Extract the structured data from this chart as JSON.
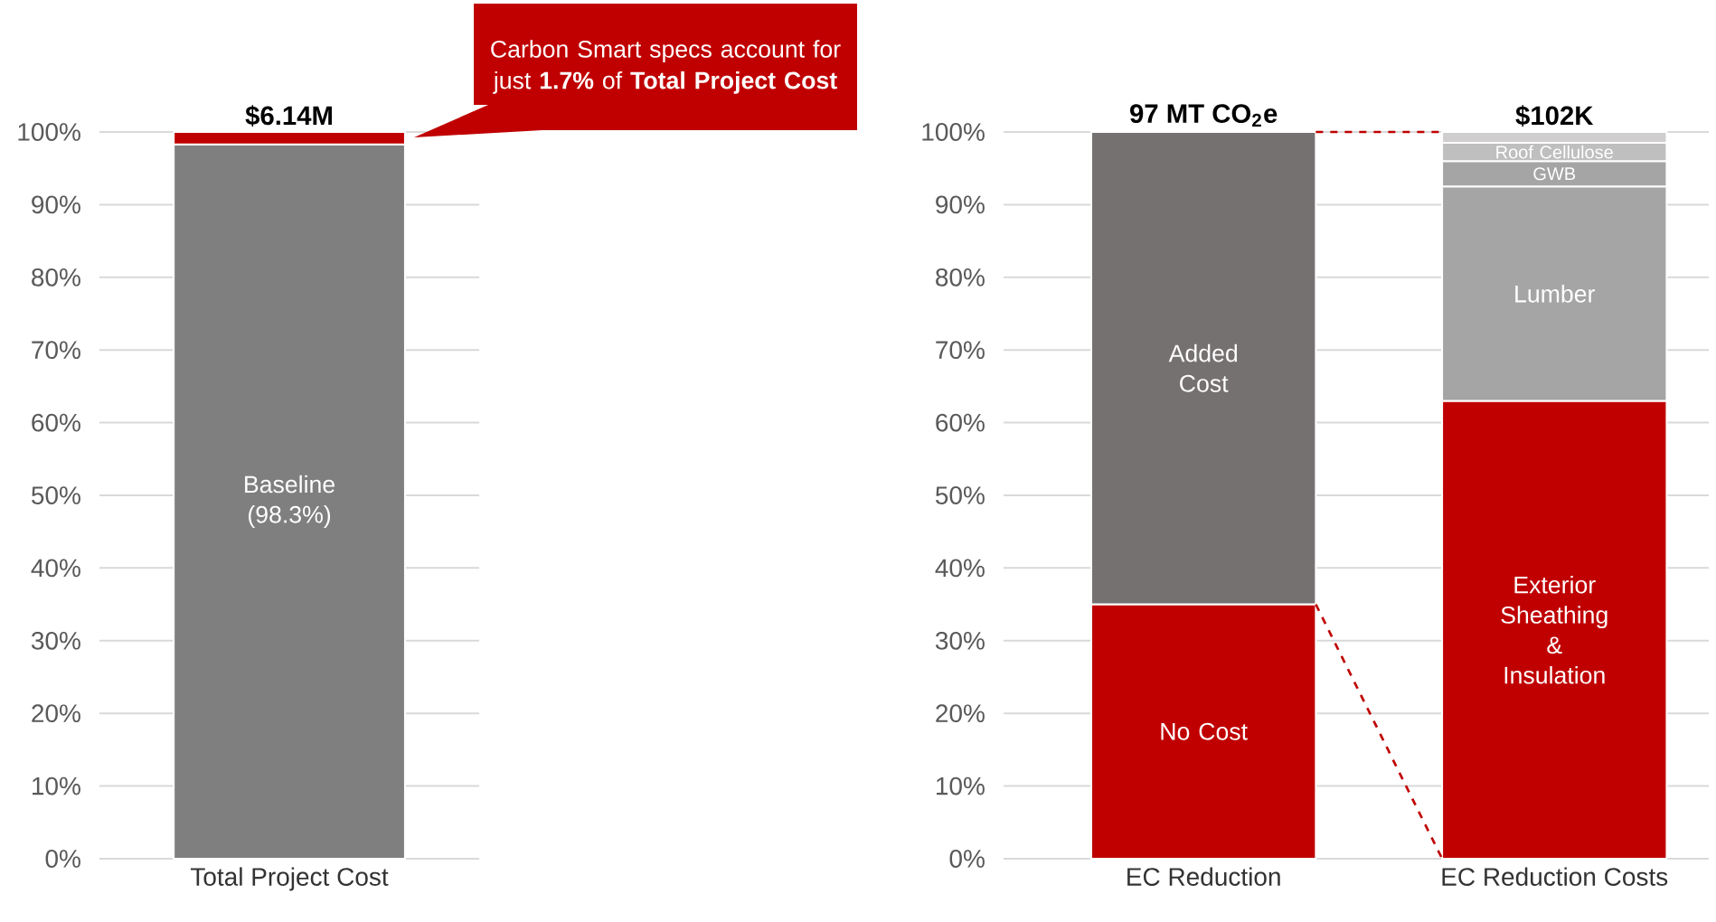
{
  "chart_data": [
    {
      "type": "bar",
      "stacked": true,
      "grid": "y",
      "categories": [
        "Total Project Cost"
      ],
      "ylim": [
        0,
        100
      ],
      "yticks": [
        {
          "value": 0,
          "label": "0%"
        },
        {
          "value": 10,
          "label": "10%"
        },
        {
          "value": 20,
          "label": "20%"
        },
        {
          "value": 30,
          "label": "30%"
        },
        {
          "value": 40,
          "label": "40%"
        },
        {
          "value": 50,
          "label": "50%"
        },
        {
          "value": 60,
          "label": "60%"
        },
        {
          "value": 70,
          "label": "70%"
        },
        {
          "value": 80,
          "label": "80%"
        },
        {
          "value": 90,
          "label": "90%"
        },
        {
          "value": 100,
          "label": "100%"
        }
      ],
      "series": [
        {
          "name": "Baseline (98.3%)",
          "color": "#7f7f7f",
          "values": [
            98.3
          ]
        },
        {
          "color": "#c00000",
          "values": [
            1.7
          ]
        }
      ],
      "annotations": [
        "Carbon Smart specs account for just **1.7%** of **Total Project Cost**",
        {
          "text": "$6.14M",
          "x": "Total Project Cost",
          "y": 100
        }
      ]
    },
    {
      "type": "bar",
      "stacked": true,
      "grid": "y",
      "categories": [
        "EC Reduction",
        "EC Reduction Costs"
      ],
      "ylim": [
        0,
        100
      ],
      "yticks": [
        {
          "value": 0,
          "label": "0%"
        },
        {
          "value": 10,
          "label": "10%"
        },
        {
          "value": 20,
          "label": "20%"
        },
        {
          "value": 30,
          "label": "30%"
        },
        {
          "value": 40,
          "label": "40%"
        },
        {
          "value": 50,
          "label": "50%"
        },
        {
          "value": 60,
          "label": "60%"
        },
        {
          "value": 70,
          "label": "70%"
        },
        {
          "value": 80,
          "label": "80%"
        },
        {
          "value": 90,
          "label": "90%"
        },
        {
          "value": 100,
          "label": "100%"
        }
      ],
      "series": [
        {
          "name": "No Cost",
          "color": "#c00000",
          "values": [
            35,
            null
          ]
        },
        {
          "name": "Added Cost",
          "color": "#767171",
          "values": [
            65,
            null
          ]
        },
        {
          "name": "Exterior Sheathing & Insulation",
          "color": "#c00000",
          "values": [
            null,
            63
          ]
        },
        {
          "name": "Lumber",
          "color": "#a5a5a5",
          "values": [
            null,
            29.5
          ]
        },
        {
          "name": "GWB",
          "color": "#a5a5a5",
          "values": [
            null,
            3.5
          ]
        },
        {
          "name": "Roof Cellulose",
          "color": "#bfbfbf",
          "values": [
            null,
            2.5
          ]
        },
        {
          "color": "#d0cece",
          "values": [
            null,
            1.5
          ]
        }
      ],
      "annotations": [
        {
          "text": "97 MT CO$_{2}$e",
          "x": "EC Reduction",
          "y": 100
        },
        {
          "text": "$102K",
          "x": "EC Reduction Costs",
          "y": 100
        }
      ]
    }
  ]
}
